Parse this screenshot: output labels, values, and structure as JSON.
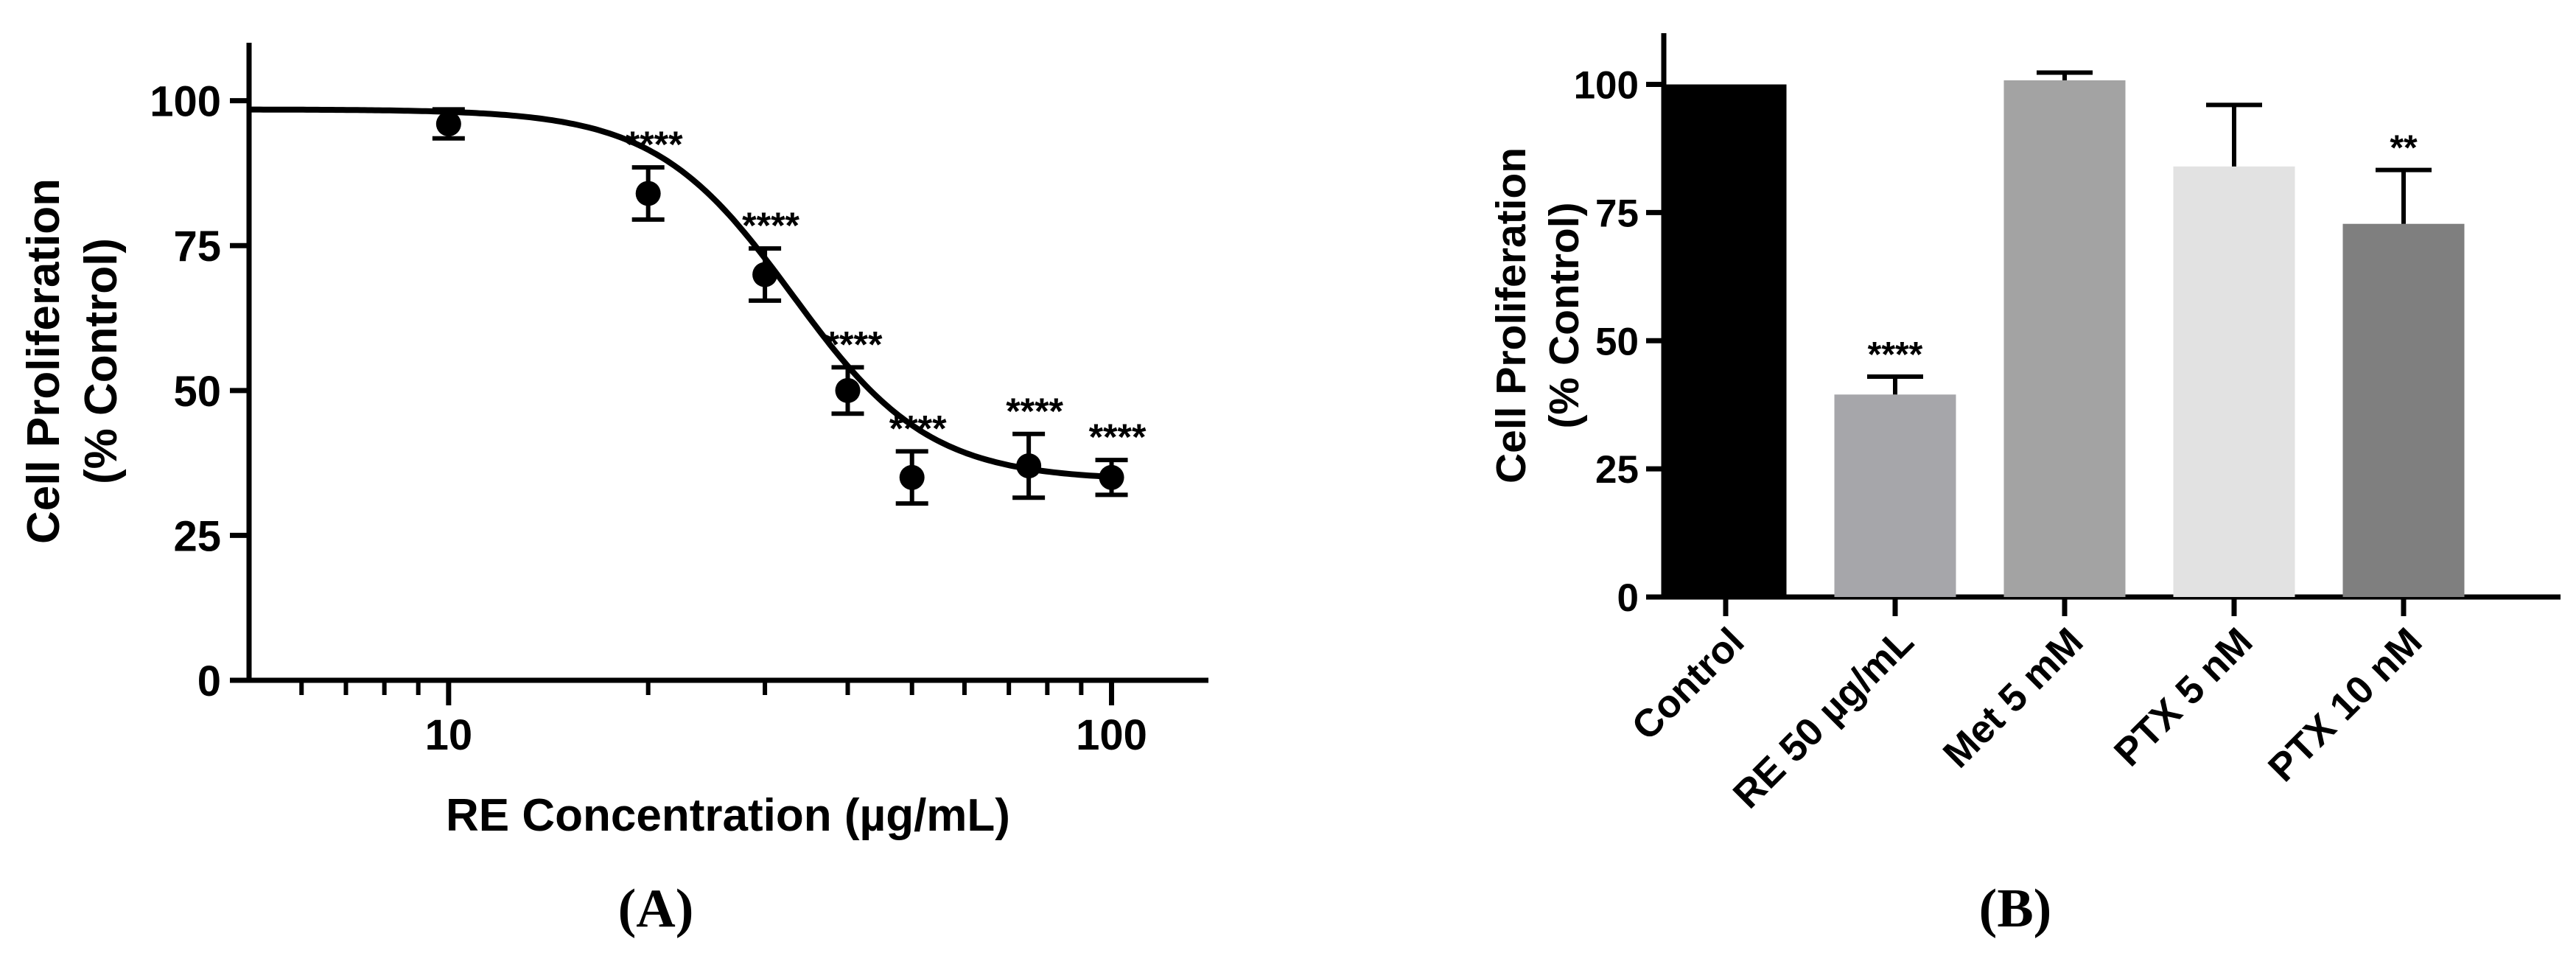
{
  "panels": [
    {
      "panel_label": "(A)",
      "chart_data": {
        "type": "scatter",
        "xlabel": "RE Concentration (µg/mL)",
        "ylabel": [
          "Cell Proliferation",
          "(% Control)"
        ],
        "x_scale": "log",
        "xlim": [
          5,
          140
        ],
        "ylim": [
          0,
          110
        ],
        "x_ticks": [
          10,
          100
        ],
        "x_minor_ticks": [
          6,
          7,
          8,
          9,
          20,
          30,
          40,
          50,
          60,
          70,
          80,
          90
        ],
        "y_ticks": [
          0,
          25,
          50,
          75,
          100
        ],
        "points": [
          {
            "x": 10,
            "y": 96,
            "err": 2.5,
            "label": ""
          },
          {
            "x": 20,
            "y": 84,
            "err": 4.5,
            "label": "****"
          },
          {
            "x": 30,
            "y": 70,
            "err": 4.5,
            "label": "****"
          },
          {
            "x": 40,
            "y": 50,
            "err": 4,
            "label": "****"
          },
          {
            "x": 50,
            "y": 35,
            "err": 4.5,
            "label": "****"
          },
          {
            "x": 75,
            "y": 37,
            "err": 5.5,
            "label": "****"
          },
          {
            "x": 100,
            "y": 35,
            "err": 3,
            "label": "****"
          }
        ],
        "fit": {
          "type": "sigmoid",
          "top": 98.5,
          "bottom": 34.5,
          "ec50": 33,
          "hill": 4.2
        },
        "grid": false,
        "legend": "none"
      }
    },
    {
      "panel_label": "(B)",
      "chart_data": {
        "type": "bar",
        "ylabel": [
          "Cell Proliferation",
          "(% Control)"
        ],
        "ylim": [
          0,
          110
        ],
        "y_ticks": [
          0,
          25,
          50,
          75,
          100
        ],
        "categories": [
          "Control",
          "RE 50 µg/mL",
          "Met 5 mM",
          "PTX 5 nM",
          "PTX 10 nM"
        ],
        "values": [
          100,
          39.5,
          100.8,
          84,
          72.8
        ],
        "errors": [
          0,
          3.5,
          1.5,
          12,
          10.5
        ],
        "annotations": [
          "",
          "****",
          "",
          "",
          "**"
        ],
        "colors": [
          "#000000",
          "#a6a6aa",
          "#a3a3a3",
          "#e2e2e2",
          "#7f7f7f"
        ],
        "grid": false,
        "legend": "none"
      }
    }
  ]
}
